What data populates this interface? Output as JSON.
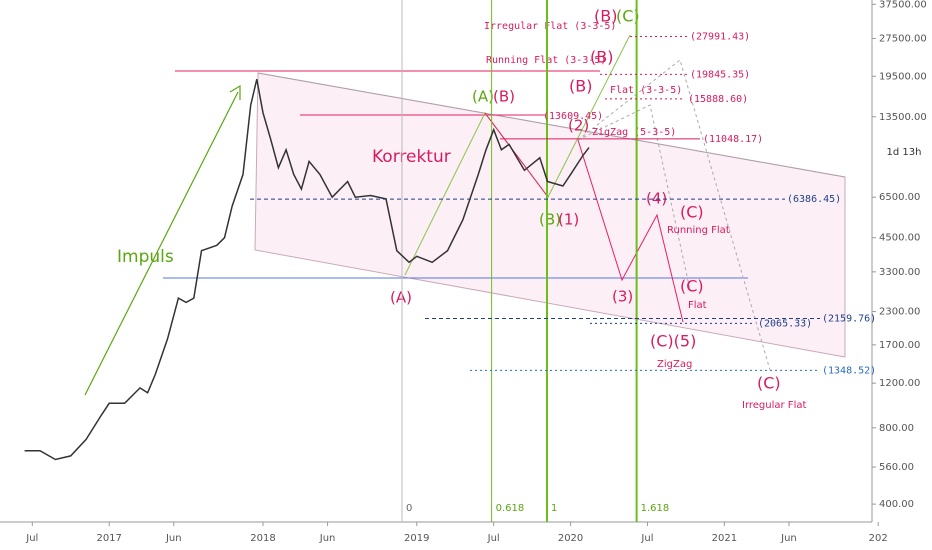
{
  "chart_data": {
    "type": "line",
    "log_y": true,
    "x": [
      2016.45,
      2016.55,
      2016.65,
      2016.75,
      2016.85,
      2016.95,
      2017.0,
      2017.1,
      2017.2,
      2017.25,
      2017.3,
      2017.38,
      2017.45,
      2017.5,
      2017.55,
      2017.6,
      2017.7,
      2017.75,
      2017.8,
      2017.87,
      2017.92,
      2017.96,
      2018.0,
      2018.05,
      2018.1,
      2018.15,
      2018.2,
      2018.25,
      2018.3,
      2018.37,
      2018.45,
      2018.55,
      2018.6,
      2018.7,
      2018.8,
      2018.87,
      2018.95,
      2019.0,
      2019.1,
      2019.2,
      2019.3,
      2019.4,
      2019.45,
      2019.5,
      2019.55,
      2019.6,
      2019.7,
      2019.8,
      2019.85,
      2019.95,
      2020.0,
      2020.08,
      2020.12
    ],
    "values": [
      650,
      650,
      600,
      620,
      720,
      900,
      1000,
      1000,
      1150,
      1100,
      1300,
      1800,
      2600,
      2500,
      2600,
      4000,
      4200,
      4500,
      6000,
      8000,
      15000,
      19000,
      14000,
      11000,
      8500,
      10000,
      8000,
      7000,
      9000,
      8000,
      6500,
      7500,
      6500,
      6600,
      6400,
      4000,
      3600,
      3800,
      3600,
      4000,
      5300,
      8000,
      10000,
      12000,
      10000,
      10500,
      8300,
      9300,
      7500,
      7200,
      8000,
      9500,
      10200
    ],
    "color": "#333333",
    "xlim": [
      2016.29,
      2021.96
    ],
    "ylim": [
      340,
      39000
    ],
    "xticks": [
      {
        "value": 2016.5,
        "label": "Jul"
      },
      2017,
      {
        "value": 2017.42,
        "label": "Jun"
      },
      2018,
      {
        "value": 2018.42,
        "label": "Jun"
      },
      2019,
      {
        "value": 2019.5,
        "label": "Jul"
      },
      2020,
      {
        "value": 2020.5,
        "label": "Jul"
      },
      2021,
      {
        "value": 2021.42,
        "label": "Jun"
      },
      {
        "value": 2022,
        "label": "202"
      }
    ],
    "yticks": [
      {
        "value": 400,
        "label": "400.00"
      },
      {
        "value": 560,
        "label": "560.00"
      },
      {
        "value": 800,
        "label": "800.00"
      },
      {
        "value": 1200,
        "label": "1200.00"
      },
      {
        "value": 1700,
        "label": "1700.00"
      },
      {
        "value": 2300,
        "label": "2300.00"
      },
      {
        "value": 3300,
        "label": "3300.00"
      },
      {
        "value": 4500,
        "label": "4500.00"
      },
      {
        "value": 6500,
        "label": "6500.00"
      },
      {
        "value": 13500,
        "label": "13500.00"
      },
      {
        "value": 19500,
        "label": "19500.00"
      },
      {
        "value": 27500,
        "label": "27500.00"
      },
      {
        "value": 37500,
        "label": "37500.00"
      }
    ],
    "countdown": "1d 13h",
    "levels": [
      {
        "value": 27991.43,
        "label": "(27991.43)",
        "color": "#d81b60"
      },
      {
        "value": 19845.35,
        "label": "(19845.35)",
        "color": "#d81b60"
      },
      {
        "value": 15888.6,
        "label": "(15888.60)",
        "color": "#d81b60"
      },
      {
        "value": 11048.17,
        "label": "(11048.17)",
        "color": "#d81b60"
      },
      {
        "value": 13609.45,
        "label": "(13609.45)",
        "color": "#d81b60"
      },
      {
        "value": 6386.45,
        "label": "(6386.45)",
        "color": "#1e3f8a"
      },
      {
        "value": 2159.76,
        "label": "(2159.76)",
        "color": "#1e3f8a"
      },
      {
        "value": 2065.33,
        "label": "(2065.33)",
        "color": "#1e3f8a"
      },
      {
        "value": 1348.52,
        "label": "(1348.52)",
        "color": "#2a6cc0"
      }
    ],
    "fib_time": [
      0,
      0.618,
      1,
      1.618
    ],
    "annotations": [
      "Impuls",
      "Korrektur",
      "(A)",
      "(A)",
      "(B)",
      "(B)",
      "(1)",
      "(2)",
      "(3)",
      "(4)",
      "(C)",
      "Running Flat",
      "(C)",
      "Flat",
      "(C)(5)",
      "ZigZag",
      "(C)",
      "Irregular Flat",
      "(B)",
      "(B)",
      "(B)",
      "(C)",
      "Irregular Flat (3-3-5)",
      "Running Flat (3-3-5)",
      "Flat (3-3-5)",
      "ZigZag (5-3-5)"
    ]
  }
}
